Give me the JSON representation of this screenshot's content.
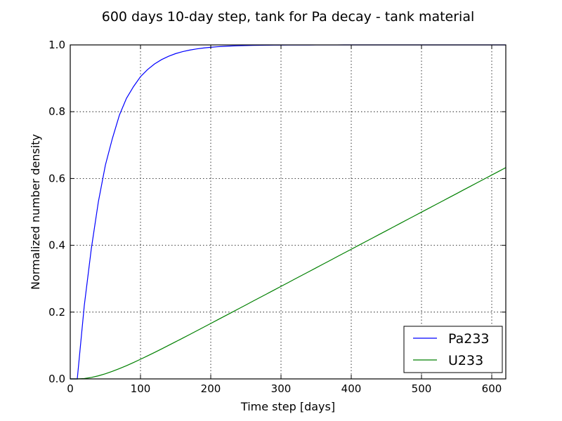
{
  "chart_data": {
    "type": "line",
    "title": "600 days 10-day step, tank for Pa decay - tank material",
    "xlabel": "Time step [days]",
    "ylabel": "Normalized number density",
    "xlim": [
      0,
      620
    ],
    "ylim": [
      0,
      1.0
    ],
    "xticks": [
      0,
      100,
      200,
      300,
      400,
      500,
      600
    ],
    "xtick_labels": [
      "0",
      "100",
      "200",
      "300",
      "400",
      "500",
      "600"
    ],
    "yticks": [
      0,
      0.2,
      0.4,
      0.6,
      0.8,
      1.0
    ],
    "ytick_labels": [
      "0.0",
      "0.2",
      "0.4",
      "0.6",
      "0.8",
      "1.0"
    ],
    "grid": true,
    "legend_position": "bottom-right",
    "series": [
      {
        "name": "Pa233",
        "color": "#0000ff",
        "x": [
          0,
          10,
          20,
          30,
          40,
          50,
          60,
          70,
          80,
          90,
          100,
          110,
          120,
          130,
          140,
          150,
          160,
          170,
          180,
          190,
          200,
          210,
          220,
          230,
          240,
          250,
          260,
          270,
          280,
          290,
          300,
          310,
          320,
          330,
          340,
          350,
          360,
          370,
          380,
          390,
          400,
          410,
          420,
          430,
          440,
          450,
          460,
          470,
          480,
          490,
          500,
          510,
          520,
          530,
          540,
          550,
          560,
          570,
          580,
          590,
          600,
          610,
          620
        ],
        "y": [
          0,
          0,
          0.22,
          0.39,
          0.53,
          0.64,
          0.72,
          0.79,
          0.84,
          0.875,
          0.905,
          0.926,
          0.943,
          0.956,
          0.966,
          0.974,
          0.98,
          0.9845,
          0.988,
          0.9908,
          0.9929,
          0.9946,
          0.9958,
          0.9968,
          0.9975,
          0.9981,
          0.9985,
          0.9989,
          0.9992,
          0.9993,
          0.9995,
          0.9996,
          0.9997,
          0.9998,
          0.9998,
          0.9999,
          0.9999,
          0.9999,
          0.9999,
          1.0,
          1.0,
          1.0,
          1.0,
          1.0,
          1.0,
          1.0,
          1.0,
          1.0,
          1.0,
          1.0,
          1.0,
          1.0,
          1.0,
          1.0,
          1.0,
          1.0,
          1.0,
          1.0,
          1.0,
          1.0,
          1.0,
          1.0,
          1.0
        ]
      },
      {
        "name": "U233",
        "color": "#008000",
        "x": [
          0,
          10,
          20,
          30,
          40,
          50,
          60,
          70,
          80,
          90,
          100,
          110,
          120,
          130,
          140,
          150,
          160,
          170,
          180,
          190,
          200,
          210,
          220,
          230,
          240,
          250,
          260,
          270,
          280,
          290,
          300,
          310,
          320,
          330,
          340,
          350,
          360,
          370,
          380,
          390,
          400,
          410,
          420,
          430,
          440,
          450,
          460,
          470,
          480,
          490,
          500,
          510,
          520,
          530,
          540,
          550,
          560,
          570,
          580,
          590,
          600,
          610,
          620
        ],
        "y": [
          0,
          0,
          0.0012,
          0.0044,
          0.0092,
          0.0154,
          0.0227,
          0.0308,
          0.0396,
          0.049,
          0.0588,
          0.0689,
          0.0792,
          0.0897,
          0.1004,
          0.1112,
          0.122,
          0.1329,
          0.1439,
          0.1549,
          0.166,
          0.1771,
          0.1881,
          0.1992,
          0.2103,
          0.2214,
          0.2326,
          0.2437,
          0.2548,
          0.2659,
          0.277,
          0.2881,
          0.2993,
          0.3104,
          0.3215,
          0.3326,
          0.3437,
          0.3548,
          0.366,
          0.3771,
          0.3882,
          0.3993,
          0.4104,
          0.4215,
          0.4326,
          0.4437,
          0.4548,
          0.466,
          0.4771,
          0.4882,
          0.4993,
          0.5104,
          0.5215,
          0.5326,
          0.5437,
          0.5548,
          0.566,
          0.5771,
          0.5882,
          0.5993,
          0.6104,
          0.6215,
          0.6326
        ]
      }
    ]
  }
}
